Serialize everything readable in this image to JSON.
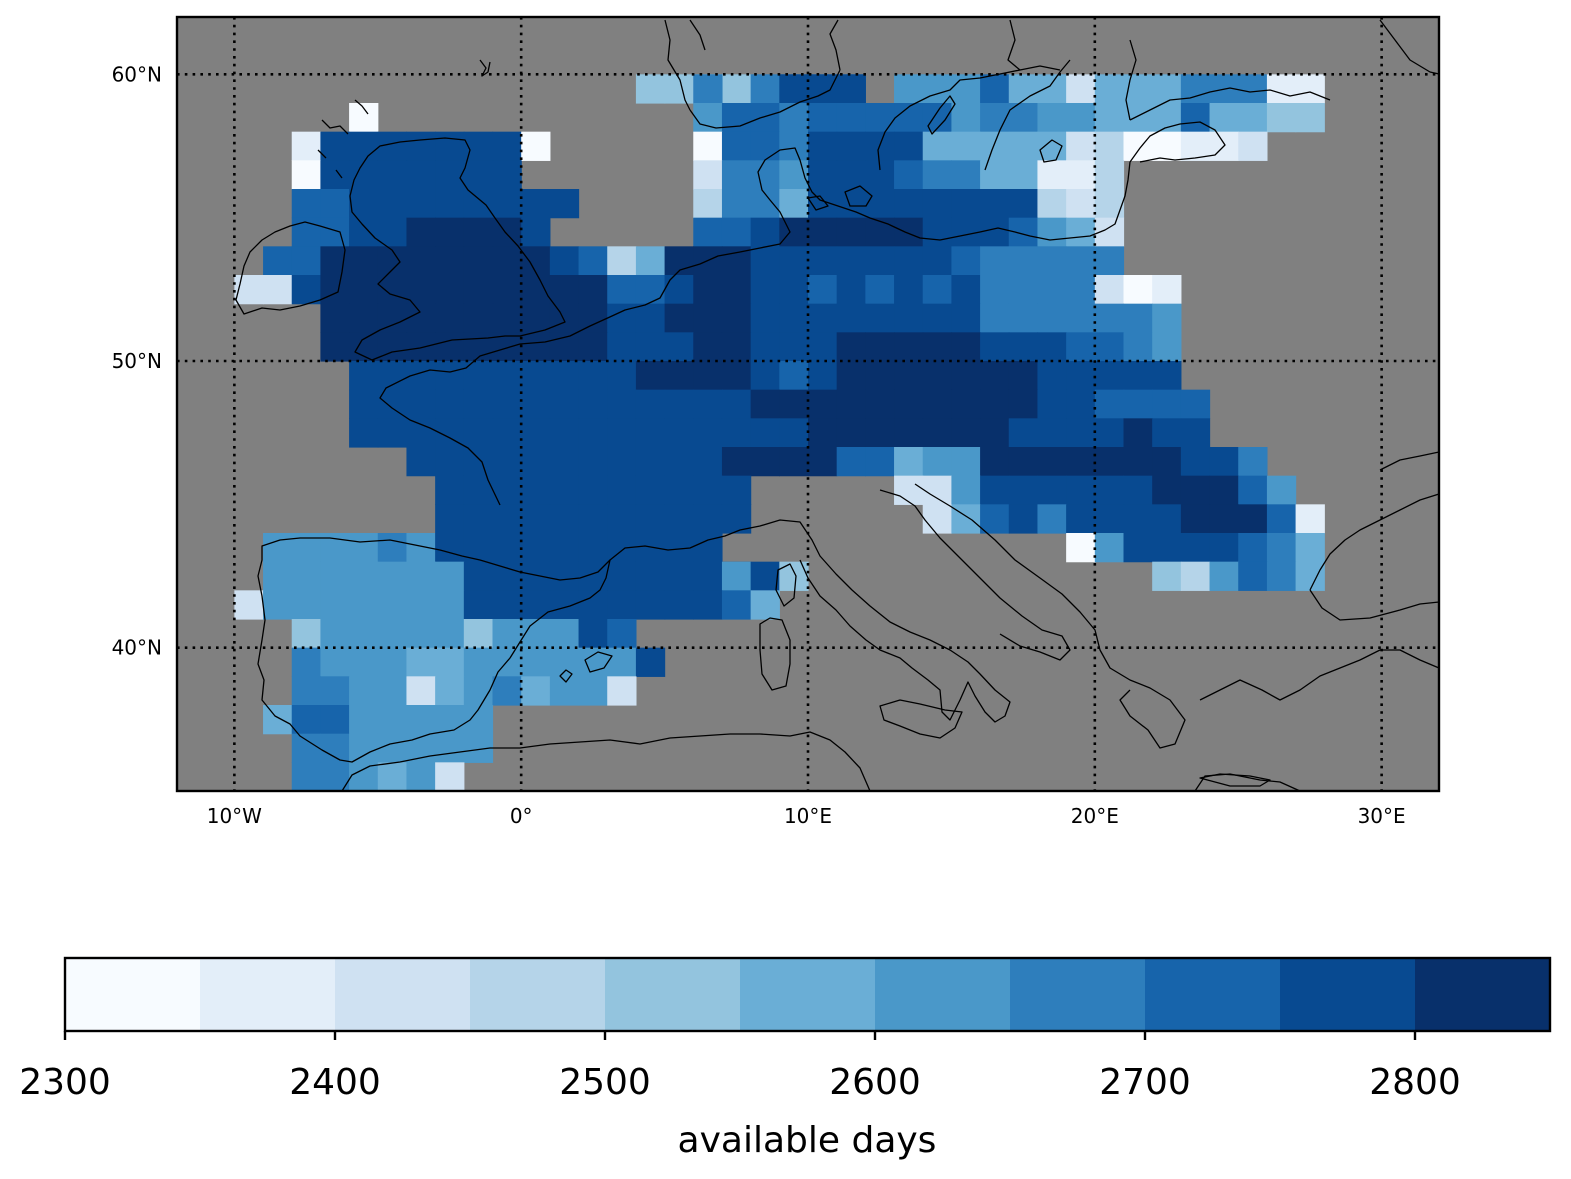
{
  "chart_data": {
    "type": "heatmap",
    "title": "",
    "projection": "PlateCarree",
    "lon_range": [
      -12,
      32
    ],
    "lat_range": [
      35,
      62
    ],
    "grid_lines": {
      "lon": [
        -10,
        0,
        10,
        20,
        30
      ],
      "lat": [
        40,
        50,
        60
      ],
      "style": "dotted"
    },
    "lon_tick_labels": [
      "10°W",
      "0°",
      "10°E",
      "20°E",
      "30°E"
    ],
    "lat_tick_labels": [
      "40°N",
      "50°N",
      "60°N"
    ],
    "background_color": "#808080",
    "coastline_color": "#000000",
    "cell_size_deg": 1,
    "colorbar": {
      "label": "available days",
      "boundaries": [
        2300,
        2350,
        2400,
        2450,
        2500,
        2550,
        2600,
        2650,
        2700,
        2750,
        2800,
        2850
      ],
      "tick_values": [
        2300,
        2400,
        2500,
        2600,
        2700,
        2800
      ],
      "tick_labels": [
        "2300",
        "2400",
        "2500",
        "2600",
        "2700",
        "2800"
      ],
      "colors": [
        "#f7fbff",
        "#e3eef9",
        "#cfe1f2",
        "#b5d4e9",
        "#93c4de",
        "#6aaed6",
        "#4a98c9",
        "#2e7ebc",
        "#1764ab",
        "#084a91",
        "#08306b"
      ],
      "orientation": "horizontal",
      "position": "bottom"
    },
    "rows": [
      {
        "lat": 59.5,
        "segments": [
          [
            4,
            4,
            4
          ],
          [
            6,
            1,
            7
          ],
          [
            8,
            4,
            7
          ],
          [
            9,
            3,
            9
          ],
          [
            13,
            3,
            6
          ],
          [
            16,
            1,
            8
          ],
          [
            17,
            2,
            5
          ],
          [
            19,
            1,
            2
          ],
          [
            20,
            3,
            5
          ],
          [
            23,
            3,
            7
          ],
          [
            26,
            2,
            1
          ]
        ]
      },
      {
        "lat": 58.5,
        "segments": [
          [
            -6,
            1,
            0
          ],
          [
            6,
            1,
            6
          ],
          [
            7,
            2,
            8
          ],
          [
            9,
            1,
            7
          ],
          [
            10,
            5,
            8
          ],
          [
            15,
            1,
            6
          ],
          [
            16,
            2,
            7
          ],
          [
            18,
            2,
            6
          ],
          [
            20,
            3,
            5
          ],
          [
            23,
            1,
            8
          ],
          [
            24,
            2,
            5
          ],
          [
            26,
            2,
            4
          ]
        ]
      },
      {
        "lat": 57.5,
        "segments": [
          [
            -8,
            1,
            1
          ],
          [
            -7,
            7,
            9
          ],
          [
            0,
            1,
            0
          ],
          [
            6,
            1,
            0
          ],
          [
            7,
            2,
            8
          ],
          [
            9,
            1,
            7
          ],
          [
            10,
            4,
            9
          ],
          [
            14,
            3,
            5
          ],
          [
            17,
            2,
            5
          ],
          [
            19,
            1,
            2
          ],
          [
            20,
            1,
            3
          ],
          [
            21,
            2,
            0
          ],
          [
            23,
            2,
            1
          ],
          [
            25,
            1,
            2
          ]
        ]
      },
      {
        "lat": 56.5,
        "segments": [
          [
            -8,
            1,
            0
          ],
          [
            -7,
            7,
            9
          ],
          [
            6,
            1,
            2
          ],
          [
            7,
            2,
            7
          ],
          [
            9,
            1,
            6
          ],
          [
            10,
            3,
            9
          ],
          [
            13,
            1,
            8
          ],
          [
            14,
            2,
            7
          ],
          [
            16,
            2,
            5
          ],
          [
            18,
            2,
            1
          ],
          [
            20,
            1,
            3
          ]
        ]
      },
      {
        "lat": 55.5,
        "segments": [
          [
            -8,
            2,
            8
          ],
          [
            -6,
            8,
            9
          ],
          [
            6,
            1,
            3
          ],
          [
            7,
            2,
            7
          ],
          [
            9,
            1,
            5
          ],
          [
            10,
            3,
            9
          ],
          [
            13,
            1,
            9
          ],
          [
            14,
            4,
            9
          ],
          [
            18,
            1,
            3
          ],
          [
            19,
            1,
            2
          ],
          [
            20,
            1,
            3
          ]
        ]
      },
      {
        "lat": 54.5,
        "segments": [
          [
            -8,
            2,
            8
          ],
          [
            -6,
            2,
            9
          ],
          [
            -4,
            4,
            10
          ],
          [
            0,
            1,
            9
          ],
          [
            6,
            2,
            8
          ],
          [
            8,
            1,
            9
          ],
          [
            9,
            1,
            10
          ],
          [
            10,
            4,
            10
          ],
          [
            14,
            3,
            9
          ],
          [
            17,
            1,
            8
          ],
          [
            18,
            1,
            6
          ],
          [
            19,
            1,
            5
          ],
          [
            20,
            1,
            2
          ]
        ]
      },
      {
        "lat": 53.5,
        "segments": [
          [
            -9,
            2,
            8
          ],
          [
            -7,
            8,
            10
          ],
          [
            1,
            1,
            9
          ],
          [
            2,
            1,
            8
          ],
          [
            3,
            1,
            3
          ],
          [
            4,
            1,
            5
          ],
          [
            5,
            3,
            10
          ],
          [
            8,
            3,
            9
          ],
          [
            11,
            4,
            9
          ],
          [
            15,
            1,
            8
          ],
          [
            16,
            4,
            7
          ],
          [
            20,
            1,
            7
          ]
        ]
      },
      {
        "lat": 52.5,
        "segments": [
          [
            -10,
            2,
            2
          ],
          [
            -8,
            1,
            9
          ],
          [
            -7,
            10,
            10
          ],
          [
            3,
            2,
            8
          ],
          [
            5,
            1,
            9
          ],
          [
            6,
            2,
            10
          ],
          [
            8,
            2,
            9
          ],
          [
            10,
            1,
            8
          ],
          [
            11,
            1,
            9
          ],
          [
            12,
            1,
            8
          ],
          [
            13,
            1,
            9
          ],
          [
            14,
            1,
            8
          ],
          [
            15,
            1,
            9
          ],
          [
            16,
            4,
            7
          ],
          [
            20,
            1,
            2
          ],
          [
            21,
            1,
            0
          ],
          [
            22,
            1,
            1
          ]
        ]
      },
      {
        "lat": 51.5,
        "segments": [
          [
            -7,
            10,
            10
          ],
          [
            3,
            2,
            9
          ],
          [
            5,
            3,
            10
          ],
          [
            8,
            8,
            9
          ],
          [
            16,
            4,
            7
          ],
          [
            20,
            2,
            7
          ],
          [
            22,
            1,
            6
          ]
        ]
      },
      {
        "lat": 50.5,
        "segments": [
          [
            -7,
            10,
            10
          ],
          [
            3,
            3,
            9
          ],
          [
            6,
            2,
            10
          ],
          [
            8,
            3,
            9
          ],
          [
            11,
            5,
            10
          ],
          [
            16,
            3,
            9
          ],
          [
            19,
            2,
            8
          ],
          [
            21,
            1,
            7
          ],
          [
            22,
            1,
            6
          ]
        ]
      },
      {
        "lat": 49.5,
        "segments": [
          [
            -6,
            10,
            9
          ],
          [
            4,
            4,
            10
          ],
          [
            8,
            1,
            9
          ],
          [
            9,
            1,
            8
          ],
          [
            10,
            1,
            9
          ],
          [
            11,
            7,
            10
          ],
          [
            18,
            5,
            9
          ]
        ]
      },
      {
        "lat": 48.5,
        "segments": [
          [
            -6,
            6,
            9
          ],
          [
            0,
            8,
            9
          ],
          [
            8,
            4,
            10
          ],
          [
            12,
            6,
            10
          ],
          [
            18,
            2,
            9
          ],
          [
            20,
            4,
            8
          ]
        ]
      },
      {
        "lat": 47.5,
        "segments": [
          [
            -6,
            1,
            9
          ],
          [
            -5,
            11,
            9
          ],
          [
            6,
            3,
            9
          ],
          [
            9,
            1,
            9
          ],
          [
            10,
            7,
            10
          ],
          [
            17,
            4,
            9
          ],
          [
            21,
            1,
            10
          ],
          [
            22,
            2,
            9
          ]
        ]
      },
      {
        "lat": 46.5,
        "segments": [
          [
            -4,
            12,
            9
          ],
          [
            7,
            4,
            10
          ],
          [
            11,
            2,
            8
          ],
          [
            13,
            1,
            5
          ],
          [
            14,
            2,
            6
          ],
          [
            16,
            7,
            10
          ],
          [
            23,
            2,
            9
          ],
          [
            25,
            1,
            7
          ]
        ]
      },
      {
        "lat": 45.5,
        "segments": [
          [
            -3,
            11,
            9
          ],
          [
            13,
            2,
            2
          ],
          [
            15,
            1,
            6
          ],
          [
            16,
            3,
            9
          ],
          [
            19,
            3,
            9
          ],
          [
            22,
            3,
            10
          ],
          [
            25,
            1,
            8
          ],
          [
            26,
            1,
            6
          ]
        ]
      },
      {
        "lat": 44.5,
        "segments": [
          [
            -3,
            11,
            9
          ],
          [
            14,
            1,
            2
          ],
          [
            15,
            1,
            5
          ],
          [
            16,
            1,
            8
          ],
          [
            17,
            1,
            9
          ],
          [
            18,
            1,
            7
          ],
          [
            19,
            2,
            9
          ],
          [
            21,
            2,
            9
          ],
          [
            23,
            3,
            10
          ],
          [
            26,
            1,
            8
          ],
          [
            27,
            1,
            1
          ]
        ]
      },
      {
        "lat": 43.5,
        "segments": [
          [
            -9,
            4,
            6
          ],
          [
            -5,
            1,
            7
          ],
          [
            -4,
            1,
            6
          ],
          [
            -3,
            10,
            9
          ],
          [
            19,
            1,
            0
          ],
          [
            20,
            1,
            6
          ],
          [
            21,
            4,
            9
          ],
          [
            25,
            1,
            8
          ],
          [
            26,
            1,
            7
          ],
          [
            27,
            1,
            5
          ]
        ]
      },
      {
        "lat": 42.5,
        "segments": [
          [
            -9,
            7,
            6
          ],
          [
            -2,
            10,
            9
          ],
          [
            7,
            1,
            6
          ],
          [
            8,
            1,
            9
          ],
          [
            9,
            1,
            4
          ],
          [
            22,
            1,
            4
          ],
          [
            23,
            1,
            3
          ],
          [
            24,
            1,
            6
          ],
          [
            25,
            1,
            8
          ],
          [
            26,
            1,
            7
          ],
          [
            27,
            1,
            5
          ]
        ]
      },
      {
        "lat": 41.5,
        "segments": [
          [
            -10,
            1,
            2
          ],
          [
            -9,
            7,
            6
          ],
          [
            -2,
            9,
            9
          ],
          [
            7,
            1,
            8
          ],
          [
            8,
            1,
            5
          ]
        ]
      },
      {
        "lat": 40.5,
        "segments": [
          [
            -8,
            1,
            4
          ],
          [
            -7,
            5,
            6
          ],
          [
            -2,
            1,
            4
          ],
          [
            -1,
            3,
            6
          ],
          [
            2,
            1,
            9
          ],
          [
            3,
            1,
            8
          ]
        ]
      },
      {
        "lat": 39.5,
        "segments": [
          [
            -8,
            1,
            7
          ],
          [
            -7,
            3,
            6
          ],
          [
            -4,
            2,
            5
          ],
          [
            -2,
            2,
            6
          ],
          [
            0,
            4,
            6
          ],
          [
            4,
            1,
            9
          ]
        ]
      },
      {
        "lat": 38.5,
        "segments": [
          [
            -8,
            2,
            7
          ],
          [
            -6,
            2,
            6
          ],
          [
            -4,
            1,
            2
          ],
          [
            -3,
            1,
            5
          ],
          [
            -2,
            1,
            6
          ],
          [
            -1,
            1,
            7
          ],
          [
            0,
            1,
            5
          ],
          [
            1,
            2,
            6
          ],
          [
            3,
            1,
            2
          ]
        ]
      },
      {
        "lat": 37.5,
        "segments": [
          [
            -9,
            1,
            5
          ],
          [
            -8,
            2,
            8
          ],
          [
            -6,
            5,
            6
          ]
        ]
      },
      {
        "lat": 36.5,
        "segments": [
          [
            -8,
            2,
            7
          ],
          [
            -6,
            5,
            6
          ]
        ]
      },
      {
        "lat": 35.5,
        "segments": [
          [
            -8,
            2,
            7
          ],
          [
            -6,
            1,
            6
          ],
          [
            -5,
            1,
            5
          ],
          [
            -4,
            1,
            6
          ],
          [
            -3,
            1,
            2
          ]
        ]
      }
    ]
  }
}
